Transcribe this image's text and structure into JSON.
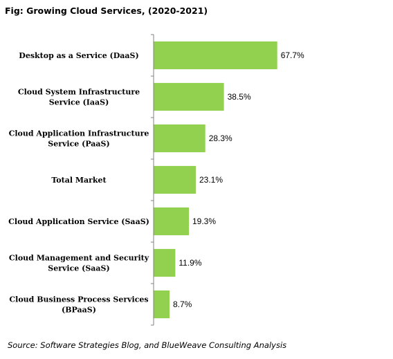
{
  "figure": {
    "title": "Fig: Growing Cloud Services, (2020-2021)",
    "source": "Source: Software Strategies Blog, and BlueWeave Consulting Analysis"
  },
  "chart_data": {
    "type": "bar",
    "orientation": "horizontal",
    "title": "Fig: Growing Cloud Services, (2020-2021)",
    "xlabel": "",
    "ylabel": "",
    "xlim": [
      0,
      100
    ],
    "grid": false,
    "legend": "none",
    "bar_color": "#92d050",
    "categories": [
      [
        "Desktop as a Service (DaaS)"
      ],
      [
        "Cloud System Infrastructure",
        "Service (IaaS)"
      ],
      [
        "Cloud Application Infrastructure",
        "Service (PaaS)"
      ],
      [
        "Total Market"
      ],
      [
        "Cloud Application Service (SaaS)"
      ],
      [
        "Cloud Management and Security",
        "Service (SaaS)"
      ],
      [
        "Cloud Business Process Services",
        "(BPaaS)"
      ]
    ],
    "values": [
      67.7,
      38.5,
      28.3,
      23.1,
      19.3,
      11.9,
      8.7
    ],
    "value_labels": [
      "67.7%",
      "38.5%",
      "28.3%",
      "23.1%",
      "19.3%",
      "11.9%",
      "8.7%"
    ]
  }
}
